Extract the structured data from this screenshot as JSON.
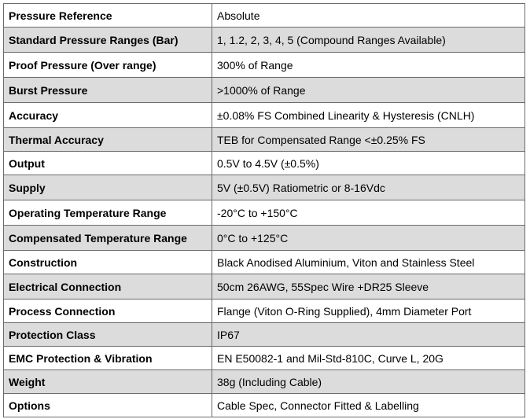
{
  "spec_table": {
    "rows": [
      {
        "label": "Pressure Reference",
        "value": "Absolute"
      },
      {
        "label": "Standard Pressure Ranges (Bar)",
        "value": "1, 1.2, 2, 3, 4, 5 (Compound Ranges Available)"
      },
      {
        "label": "Proof Pressure (Over range)",
        "value": "300% of Range"
      },
      {
        "label": "Burst Pressure",
        "value": ">1000% of Range"
      },
      {
        "label": "Accuracy",
        "value": "±0.08% FS Combined Linearity & Hysteresis (CNLH)"
      },
      {
        "label": "Thermal Accuracy",
        "value": "TEB for Compensated Range <±0.25% FS"
      },
      {
        "label": "Output",
        "value": "0.5V to 4.5V (±0.5%)"
      },
      {
        "label": "Supply",
        "value": "5V (±0.5V) Ratiometric or 8-16Vdc"
      },
      {
        "label": "Operating Temperature Range",
        "value": "-20°C to +150°C"
      },
      {
        "label": "Compensated Temperature Range",
        "value": "0°C to +125°C"
      },
      {
        "label": "Construction",
        "value": "Black Anodised Aluminium, Viton and Stainless Steel"
      },
      {
        "label": "Electrical Connection",
        "value": "50cm 26AWG, 55Spec Wire +DR25 Sleeve"
      },
      {
        "label": "Process Connection",
        "value": "Flange (Viton O-Ring Supplied), 4mm Diameter Port"
      },
      {
        "label": "Protection Class",
        "value": "IP67"
      },
      {
        "label": "EMC Protection & Vibration",
        "value": "EN E50082-1 and Mil-Std-810C, Curve L, 20G"
      },
      {
        "label": "Weight",
        "value": "38g (Including Cable)"
      },
      {
        "label": "Options",
        "value": "Cable Spec, Connector Fitted & Labelling"
      }
    ]
  }
}
